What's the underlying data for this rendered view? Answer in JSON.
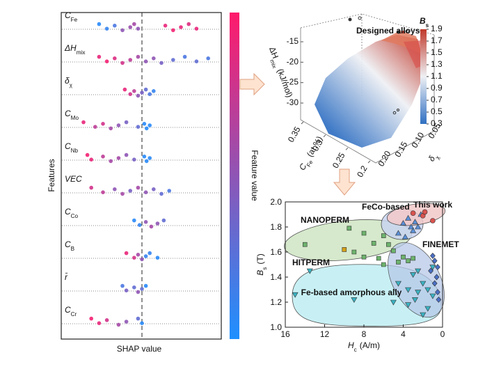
{
  "chart_data": [
    {
      "type": "beeswarm",
      "ylabel": "Features",
      "xlabel": "SHAP value",
      "colorbar_label": "Feature value",
      "cmap": [
        "#1e90ff",
        "#ff1a6b"
      ],
      "xlim": [
        -1,
        1
      ],
      "series": [
        {
          "name": "C",
          "sub": "Fe",
          "values": [
            -0.55,
            -0.45,
            -0.35,
            -0.25,
            -0.15,
            -0.1,
            -0.05,
            0.3,
            0.4,
            0.5,
            0.6,
            0.7
          ],
          "feature_values": [
            0.05,
            0.1,
            0.2,
            0.5,
            0.55,
            0.6,
            0.5,
            0.9,
            0.95,
            0.9,
            0.85,
            0.9
          ]
        },
        {
          "name": "ΔH",
          "sub": "mix",
          "values": [
            -0.55,
            -0.45,
            -0.35,
            -0.25,
            -0.15,
            -0.05,
            0.05,
            0.15,
            0.25,
            0.4,
            0.55,
            0.7,
            0.85
          ],
          "feature_values": [
            0.9,
            0.95,
            0.85,
            0.8,
            0.7,
            0.6,
            0.5,
            0.5,
            0.4,
            0.3,
            0.2,
            0.3,
            0.2
          ]
        },
        {
          "name": "δ",
          "sub": "χ",
          "values": [
            -0.22,
            -0.15,
            -0.1,
            -0.05,
            0,
            0.05,
            0.1,
            0.15
          ],
          "feature_values": [
            0.9,
            0.8,
            0.7,
            0.5,
            0.4,
            0.3,
            0.2,
            0.1
          ]
        },
        {
          "name": "C",
          "sub": "Mo",
          "values": [
            -0.75,
            -0.6,
            -0.5,
            -0.4,
            -0.3,
            -0.2,
            -0.05,
            0.03,
            0.06,
            0.1
          ],
          "feature_values": [
            0.9,
            0.7,
            0.8,
            0.6,
            0.5,
            0.4,
            0.3,
            0.05,
            0.05,
            0.05
          ]
        },
        {
          "name": "C",
          "sub": "Nb",
          "values": [
            -0.7,
            -0.65,
            -0.5,
            -0.4,
            -0.3,
            -0.2,
            -0.1,
            0.03,
            0.06,
            0.1
          ],
          "feature_values": [
            0.95,
            0.9,
            0.7,
            0.6,
            0.6,
            0.5,
            0.4,
            0.05,
            0.05,
            0.05
          ]
        },
        {
          "name": "VEC",
          "values": [
            -0.65,
            -0.5,
            -0.35,
            -0.25,
            -0.15,
            -0.05,
            0.05,
            0.15,
            0.25,
            0.35
          ],
          "feature_values": [
            0.8,
            0.7,
            0.5,
            0.6,
            0.4,
            0.6,
            0.5,
            0.4,
            0.3,
            0.2
          ]
        },
        {
          "name": "C",
          "sub": "Co",
          "values": [
            -0.1,
            -0.03,
            0.05,
            0.12,
            0.2,
            0.28
          ],
          "feature_values": [
            0.05,
            0.1,
            0.5,
            0.6,
            0.5,
            0.3
          ]
        },
        {
          "name": "C",
          "sub": "B",
          "values": [
            -0.2,
            -0.1,
            -0.05,
            0,
            0.05,
            0.1,
            0.2
          ],
          "feature_values": [
            0.9,
            0.8,
            0.6,
            0.5,
            0.1,
            0.1,
            0.05
          ]
        },
        {
          "name": "r̄",
          "values": [
            -0.25,
            -0.2,
            -0.1,
            -0.05,
            0,
            0.05
          ],
          "feature_values": [
            0.2,
            0.4,
            0.3,
            0.5,
            0.3,
            0.05
          ]
        },
        {
          "name": "C",
          "sub": "Cr",
          "values": [
            -0.65,
            -0.55,
            -0.45,
            -0.3,
            -0.2,
            -0.05,
            0
          ],
          "feature_values": [
            0.95,
            0.9,
            0.8,
            0.6,
            0.5,
            0.3,
            0.05
          ]
        }
      ]
    },
    {
      "type": "surface3d",
      "annotation": "Designed alloys",
      "zlabel": "ΔH",
      "zlabel_sub": "mix",
      "zlabel_unit": "(kJ/mol)",
      "zlim": [
        -15,
        -30
      ],
      "zticks": [
        -15,
        -20,
        -25,
        -30
      ],
      "xlabel": "C",
      "xlabel_sub": "Fe",
      "xlabel_unit": "(at.%)",
      "xlim": [
        0.35,
        0.2
      ],
      "xticks": [
        0.35,
        0.3,
        0.25,
        0.2
      ],
      "ylabel": "δ",
      "ylabel_sub": "χ",
      "ylim": [
        0.2,
        0.05
      ],
      "yticks": [
        {
          "value": 0.2,
          "label": "0.20"
        },
        0.15,
        {
          "value": 0.1,
          "label": "0.10"
        },
        0.05
      ],
      "colorbar_label": "B",
      "colorbar_sub": "s",
      "clim": [
        0.3,
        1.9
      ],
      "cticks": [
        0.3,
        0.5,
        0.7,
        0.9,
        1.1,
        1.3,
        1.5,
        1.7,
        1.9
      ],
      "cmap": [
        "#2f6fc2",
        "#eef0f4",
        "#c0392b"
      ]
    },
    {
      "type": "scatter",
      "xlabel": "H",
      "xlabel_sub": "c",
      "xlabel_unit": "(A/m)",
      "ylabel": "B",
      "ylabel_sub": "s",
      "ylabel_unit": "(T)",
      "xlim": [
        16,
        0
      ],
      "xticks": [
        16,
        12,
        8,
        4,
        0
      ],
      "ylim": [
        1,
        2
      ],
      "yticks": [
        {
          "value": 1,
          "label": "1.0"
        },
        1.2,
        1.4,
        1.6,
        1.8,
        {
          "value": 2,
          "label": "2.0"
        }
      ],
      "series": [
        {
          "name": "NANOPERM",
          "color": "#6db36d",
          "marker": "square",
          "x": [
            14,
            9.5,
            8,
            7,
            6,
            5.5,
            5,
            9,
            6.5,
            4,
            3.5,
            3,
            4.5,
            8,
            6
          ],
          "values": [
            1.66,
            1.79,
            1.75,
            1.67,
            1.73,
            1.66,
            1.61,
            1.6,
            1.55,
            1.56,
            1.53,
            1.55,
            1.52,
            1.56,
            1.5
          ]
        },
        {
          "name": "HITPERM",
          "color": "#d4a017",
          "marker": "square",
          "x": [
            10
          ],
          "values": [
            1.62
          ]
        },
        {
          "name": "FeCo-based",
          "color": "#5b8fd6",
          "marker": "triangle",
          "x": [
            4,
            3.5,
            3.2,
            2.8,
            2.5,
            3,
            2.2,
            4.5,
            3.8
          ],
          "values": [
            1.83,
            1.87,
            1.8,
            1.84,
            1.8,
            1.77,
            1.9,
            1.75,
            1.72
          ]
        },
        {
          "name": "FINEMET",
          "color": "#4a6fc4",
          "marker": "diamond",
          "x": [
            1,
            0.8,
            0.5,
            0.6,
            0.8,
            0.5,
            0.4,
            1.2
          ],
          "values": [
            1.57,
            1.53,
            1.48,
            1.4,
            1.35,
            1.28,
            1.22,
            1.45
          ]
        },
        {
          "name": "Fe-based amorphous ally",
          "color": "#3bb3c3",
          "marker": "down-triangle",
          "x": [
            15,
            13.5,
            9,
            5,
            4.5,
            3.5,
            3,
            2.5,
            2,
            1.5,
            1,
            1.5,
            2.8,
            2,
            3.5,
            1,
            2.5
          ],
          "values": [
            1.26,
            1.45,
            1.22,
            1.2,
            1.35,
            1.3,
            1.42,
            1.45,
            1.35,
            1.3,
            1.25,
            1.15,
            1.22,
            1.1,
            1.18,
            1.48,
            1.28
          ]
        },
        {
          "name": "This work",
          "color": "#d9534f",
          "marker": "circle",
          "x": [
            3,
            2,
            1,
            1.8
          ],
          "values": [
            1.91,
            1.89,
            1.85,
            1.92
          ]
        }
      ]
    }
  ]
}
